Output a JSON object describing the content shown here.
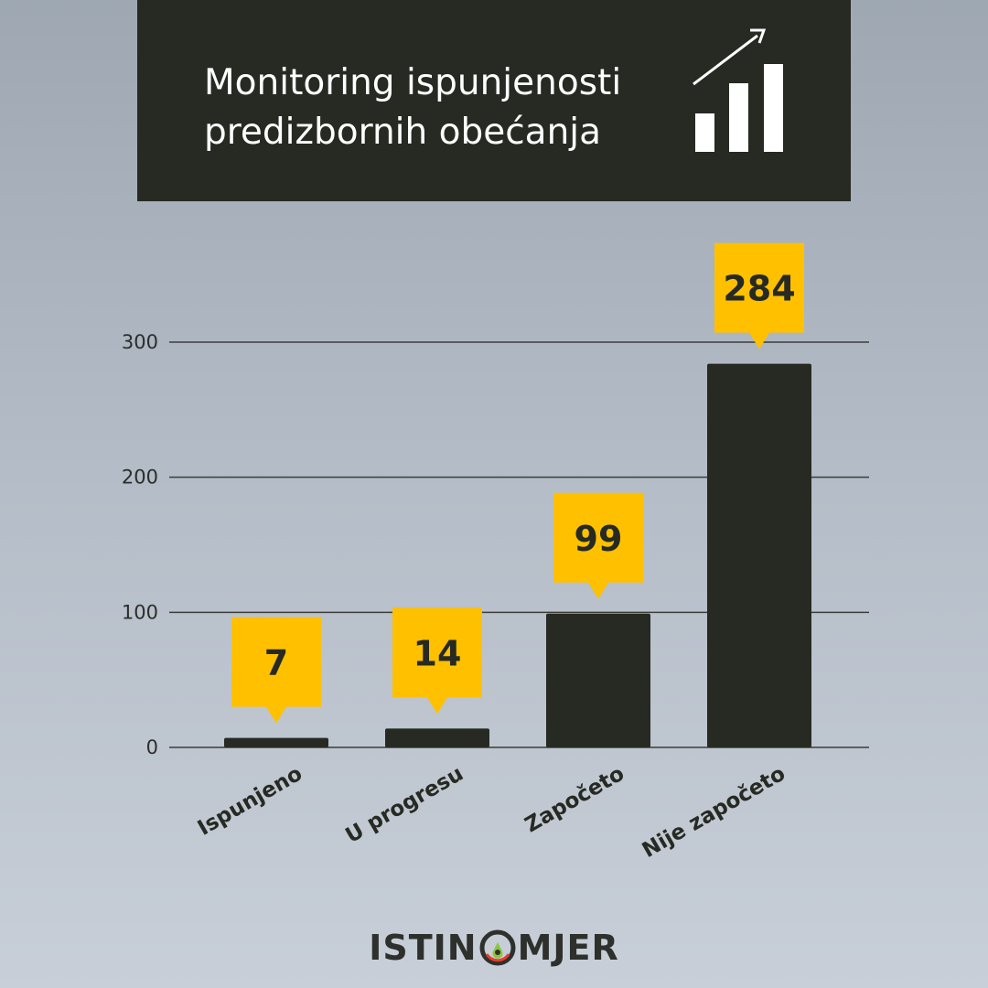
{
  "header": {
    "title_line1": "Monitoring ispunjenosti",
    "title_line2": "predizbornih obećanja",
    "icon": "rising-bar-chart-icon"
  },
  "colors": {
    "background_top": "#9ea7b2",
    "background_bottom": "#c8cfd8",
    "header_bg": "#262a22",
    "bar": "#262a22",
    "callout": "#ffc000",
    "grid": "#3a3d38"
  },
  "chart_data": {
    "type": "bar",
    "categories": [
      "Ispunjeno",
      "U progresu",
      "Započeto",
      "Nije započeto"
    ],
    "values": [
      7,
      14,
      99,
      284
    ],
    "value_labels": [
      "7",
      "14",
      "99",
      "284"
    ],
    "ylim": [
      0,
      300
    ],
    "yticks": [
      0,
      100,
      200,
      300
    ],
    "grid": true,
    "title": "",
    "xlabel": "",
    "ylabel": ""
  },
  "footer": {
    "logo_left": "ISTIN",
    "logo_right": "MJER",
    "logo_icon": "gauge-o-icon"
  }
}
